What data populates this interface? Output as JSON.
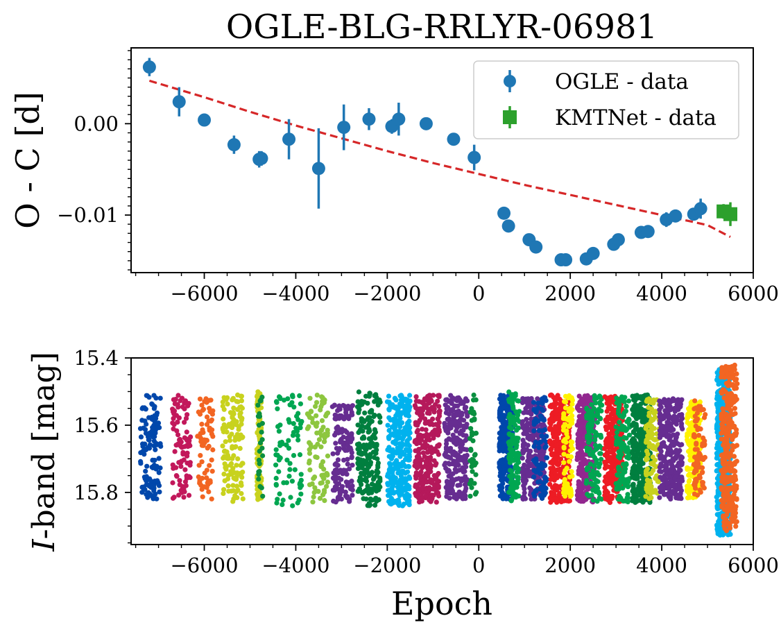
{
  "chart_data": [
    {
      "type": "scatter",
      "panel": "top",
      "title": "OGLE-BLG-RRLYR-06981",
      "xlabel": "",
      "ylabel": "O - C [d]",
      "xlim": [
        -7600,
        6000
      ],
      "ylim": [
        -0.0163,
        0.0083
      ],
      "xticks": [
        -6000,
        -4000,
        -2000,
        0,
        2000,
        4000,
        6000
      ],
      "xtick_labels": [
        "−6000",
        "−4000",
        "−2000",
        "0",
        "2000",
        "4000",
        "6000"
      ],
      "yticks": [
        0.0,
        -0.01
      ],
      "ytick_labels": [
        "0.00",
        "−0.01"
      ],
      "legend_position": "top-right",
      "series": [
        {
          "name": "OGLE - data",
          "color": "#1f77b4",
          "marker": "circle",
          "points": [
            {
              "x": -7200,
              "y": 0.0062,
              "err": 0.001
            },
            {
              "x": -6550,
              "y": 0.0024,
              "err": 0.0016
            },
            {
              "x": -6000,
              "y": 0.0004,
              "err": 0.0004
            },
            {
              "x": -5350,
              "y": -0.0023,
              "err": 0.001
            },
            {
              "x": -4800,
              "y": -0.0039,
              "err": 0.0009
            },
            {
              "x": -4750,
              "y": -0.0038,
              "err": 0.0008
            },
            {
              "x": -4150,
              "y": -0.0017,
              "err": 0.0022
            },
            {
              "x": -3500,
              "y": -0.0049,
              "err": 0.0044
            },
            {
              "x": -2950,
              "y": -0.0004,
              "err": 0.0025
            },
            {
              "x": -2400,
              "y": 0.0005,
              "err": 0.0012
            },
            {
              "x": -1900,
              "y": -0.0003,
              "err": 0.0008
            },
            {
              "x": -1750,
              "y": 0.0005,
              "err": 0.0018
            },
            {
              "x": -1150,
              "y": 0.0,
              "err": 0.0006
            },
            {
              "x": -550,
              "y": -0.0017,
              "err": 0.0006
            },
            {
              "x": -100,
              "y": -0.0037,
              "err": 0.0014
            },
            {
              "x": 550,
              "y": -0.0098,
              "err": 0.0005
            },
            {
              "x": 650,
              "y": -0.0112,
              "err": 0.0006
            },
            {
              "x": 1100,
              "y": -0.0127,
              "err": 0.0006
            },
            {
              "x": 1250,
              "y": -0.0135,
              "err": 0.0005
            },
            {
              "x": 1800,
              "y": -0.0149,
              "err": 0.0005
            },
            {
              "x": 1900,
              "y": -0.0149,
              "err": 0.0005
            },
            {
              "x": 2350,
              "y": -0.0148,
              "err": 0.0005
            },
            {
              "x": 2500,
              "y": -0.0142,
              "err": 0.0005
            },
            {
              "x": 2950,
              "y": -0.0132,
              "err": 0.0005
            },
            {
              "x": 3050,
              "y": -0.0127,
              "err": 0.0005
            },
            {
              "x": 3550,
              "y": -0.0119,
              "err": 0.0005
            },
            {
              "x": 3700,
              "y": -0.0118,
              "err": 0.0005
            },
            {
              "x": 4100,
              "y": -0.0105,
              "err": 0.0008
            },
            {
              "x": 4300,
              "y": -0.0101,
              "err": 0.0007
            },
            {
              "x": 4700,
              "y": -0.0099,
              "err": 0.0006
            },
            {
              "x": 4850,
              "y": -0.0093,
              "err": 0.0011
            }
          ]
        },
        {
          "name": "KMTNet - data",
          "color": "#2ca02c",
          "marker": "square",
          "points": [
            {
              "x": 5350,
              "y": -0.0096,
              "err": 0.0008
            },
            {
              "x": 5500,
              "y": -0.0099,
              "err": 0.0013
            }
          ]
        }
      ],
      "fit": {
        "color": "#d62728",
        "style": "dashed",
        "x": [
          -7200,
          -6000,
          -5000,
          -4000,
          -3000,
          -2000,
          -1000,
          0,
          1000,
          2000,
          3000,
          4000,
          5000,
          5500
        ],
        "y": [
          0.0047,
          0.0029,
          0.0013,
          -0.0002,
          -0.0016,
          -0.003,
          -0.0043,
          -0.0055,
          -0.0067,
          -0.0078,
          -0.0089,
          -0.01,
          -0.0111,
          -0.0124
        ]
      }
    },
    {
      "type": "scatter",
      "panel": "bottom",
      "xlabel": "Epoch",
      "ylabel": "I-band [mag]",
      "ylabel_parts": [
        "I",
        "-band [mag]"
      ],
      "xlim": [
        -7600,
        6000
      ],
      "ylim": [
        15.955,
        15.4
      ],
      "inverted_y": true,
      "xticks": [
        -6000,
        -4000,
        -2000,
        0,
        2000,
        4000,
        6000
      ],
      "xtick_labels": [
        "−6000",
        "−4000",
        "−2000",
        "0",
        "2000",
        "4000",
        "6000"
      ],
      "yticks": [
        15.4,
        15.6,
        15.8
      ],
      "ytick_labels": [
        "15.4",
        "15.6",
        "15.8"
      ],
      "seasons": [
        {
          "x": [
            -7400,
            -6950
          ],
          "mag": [
            15.51,
            15.82
          ],
          "color": "#0047ab",
          "n": 130
        },
        {
          "x": [
            -6700,
            -6300
          ],
          "mag": [
            15.51,
            15.82
          ],
          "color": "#c2185b",
          "n": 90
        },
        {
          "x": [
            -6150,
            -5800
          ],
          "mag": [
            15.52,
            15.82
          ],
          "color": "#f26522",
          "n": 70
        },
        {
          "x": [
            -5600,
            -5150
          ],
          "mag": [
            15.51,
            15.83
          ],
          "color": "#c8d21e",
          "n": 130
        },
        {
          "x": [
            -4850,
            -4750
          ],
          "mag": [
            15.5,
            15.83
          ],
          "color": "#c8d21e",
          "n": 110
        },
        {
          "x": [
            -4850,
            -4720
          ],
          "mag": [
            15.5,
            15.83
          ],
          "color": "#0a8f40",
          "n": 25
        },
        {
          "x": [
            -4450,
            -3850
          ],
          "mag": [
            15.51,
            15.85
          ],
          "color": "#00a651",
          "n": 80
        },
        {
          "x": [
            -3750,
            -3300
          ],
          "mag": [
            15.51,
            15.83
          ],
          "color": "#8dc63f",
          "n": 90
        },
        {
          "x": [
            -3200,
            -2750
          ],
          "mag": [
            15.54,
            15.83
          ],
          "color": "#662d91",
          "n": 150
        },
        {
          "x": [
            -2650,
            -2150
          ],
          "mag": [
            15.5,
            15.84
          ],
          "color": "#007f3f",
          "n": 190
        },
        {
          "x": [
            -2000,
            -1500
          ],
          "mag": [
            15.51,
            15.84
          ],
          "color": "#00b2ee",
          "n": 280
        },
        {
          "x": [
            -1400,
            -850
          ],
          "mag": [
            15.51,
            15.83
          ],
          "color": "#b5195b",
          "n": 270
        },
        {
          "x": [
            -750,
            -250
          ],
          "mag": [
            15.51,
            15.82
          ],
          "color": "#662d91",
          "n": 240
        },
        {
          "x": [
            -200,
            -50
          ],
          "mag": [
            15.51,
            15.82
          ],
          "color": "#0a8f40",
          "n": 40
        },
        {
          "x": [
            450,
            750
          ],
          "mag": [
            15.51,
            15.82
          ],
          "color": "#0047ab",
          "n": 260
        },
        {
          "x": [
            650,
            900
          ],
          "mag": [
            15.5,
            15.83
          ],
          "color": "#00a651",
          "n": 120
        },
        {
          "x": [
            950,
            1450
          ],
          "mag": [
            15.52,
            15.82
          ],
          "color": "#662d91",
          "n": 280
        },
        {
          "x": [
            1200,
            1500
          ],
          "mag": [
            15.51,
            15.82
          ],
          "color": "#0047ab",
          "n": 90
        },
        {
          "x": [
            1550,
            2000
          ],
          "mag": [
            15.51,
            15.83
          ],
          "color": "#ed1c24",
          "n": 300
        },
        {
          "x": [
            1850,
            2050
          ],
          "mag": [
            15.51,
            15.82
          ],
          "color": "#fff200",
          "n": 80
        },
        {
          "x": [
            2150,
            2550
          ],
          "mag": [
            15.51,
            15.83
          ],
          "color": "#92278f",
          "n": 300
        },
        {
          "x": [
            2350,
            2700
          ],
          "mag": [
            15.51,
            15.83
          ],
          "color": "#00a651",
          "n": 120
        },
        {
          "x": [
            2750,
            3150
          ],
          "mag": [
            15.51,
            15.83
          ],
          "color": "#ed1c24",
          "n": 300
        },
        {
          "x": [
            3000,
            3300
          ],
          "mag": [
            15.51,
            15.83
          ],
          "color": "#00a651",
          "n": 120
        },
        {
          "x": [
            3350,
            3750
          ],
          "mag": [
            15.51,
            15.83
          ],
          "color": "#007f3f",
          "n": 300
        },
        {
          "x": [
            3650,
            3950
          ],
          "mag": [
            15.52,
            15.82
          ],
          "color": "#c8d21e",
          "n": 120
        },
        {
          "x": [
            3950,
            4450
          ],
          "mag": [
            15.52,
            15.82
          ],
          "color": "#662d91",
          "n": 300
        },
        {
          "x": [
            4550,
            4850
          ],
          "mag": [
            15.53,
            15.82
          ],
          "color": "#fff200",
          "n": 200
        },
        {
          "x": [
            4700,
            4950
          ],
          "mag": [
            15.52,
            15.82
          ],
          "color": "#f26522",
          "n": 80
        },
        {
          "x": [
            5200,
            5500
          ],
          "mag": [
            15.43,
            15.93
          ],
          "color": "#00b2ee",
          "n": 600
        },
        {
          "x": [
            5300,
            5650
          ],
          "mag": [
            15.42,
            15.92
          ],
          "color": "#f26522",
          "n": 300
        }
      ]
    }
  ]
}
